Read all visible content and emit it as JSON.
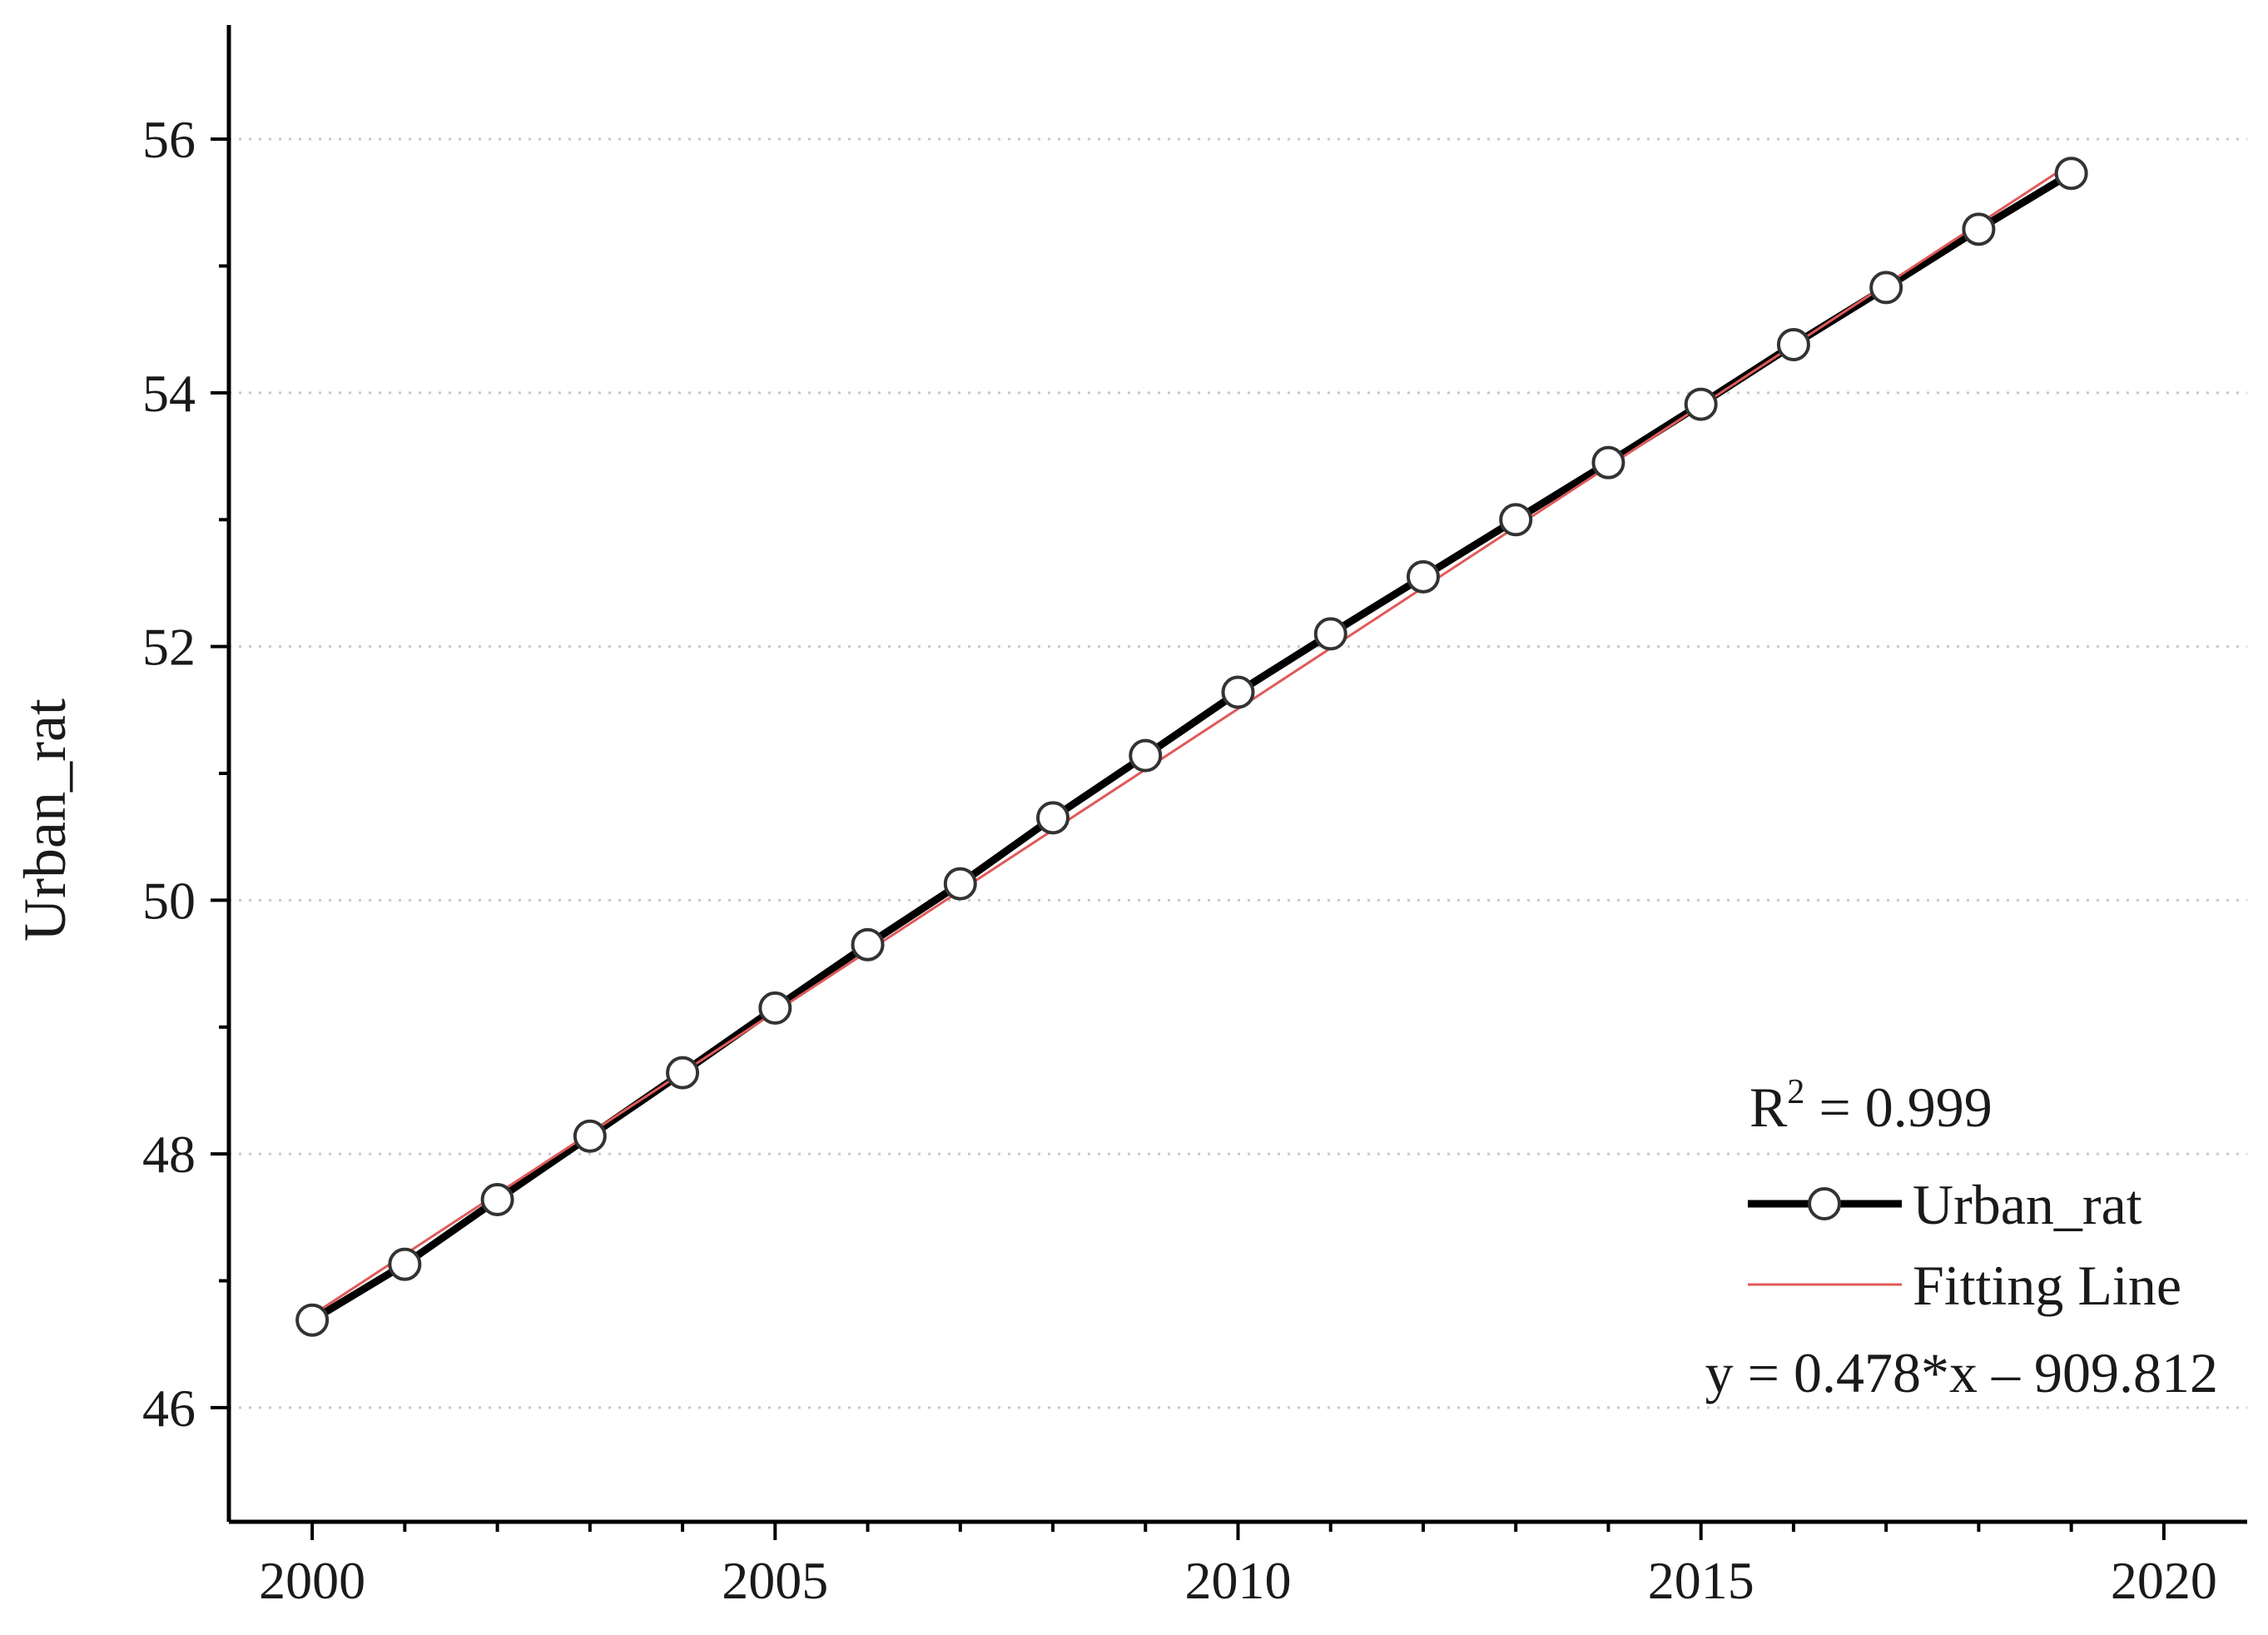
{
  "chart_data": {
    "type": "line",
    "title": "",
    "xlabel": "",
    "ylabel": "Urban_rat",
    "xlim": [
      1999.1,
      2020.9
    ],
    "ylim": [
      45.1,
      56.9
    ],
    "x_ticks": [
      2000,
      2005,
      2010,
      2015,
      2020
    ],
    "y_ticks": [
      46,
      48,
      50,
      52,
      54,
      56
    ],
    "grid": "horizontal dotted at major y ticks",
    "legend_position": "bottom-right",
    "series": [
      {
        "name": "Urban_rat",
        "color": "#000000",
        "marker": "open-circle",
        "x": [
          2000,
          2001,
          2002,
          2003,
          2004,
          2005,
          2006,
          2007,
          2008,
          2009,
          2010,
          2011,
          2012,
          2013,
          2014,
          2015,
          2016,
          2017,
          2018,
          2019
        ],
        "y": [
          46.69,
          47.13,
          47.64,
          48.14,
          48.64,
          49.15,
          49.65,
          50.13,
          50.65,
          51.14,
          51.64,
          52.1,
          52.55,
          53.0,
          53.45,
          53.91,
          54.38,
          54.83,
          55.29,
          55.73
        ]
      },
      {
        "name": "Fitting Line",
        "color": "#e05a5a",
        "x": [
          2000,
          2019
        ],
        "y": [
          46.73,
          55.81
        ]
      }
    ],
    "annotations": {
      "r2_label": "R",
      "r2_superscript": "2",
      "r2_value": " = 0.999",
      "equation": "y = 0.478*x – 909.812"
    }
  }
}
